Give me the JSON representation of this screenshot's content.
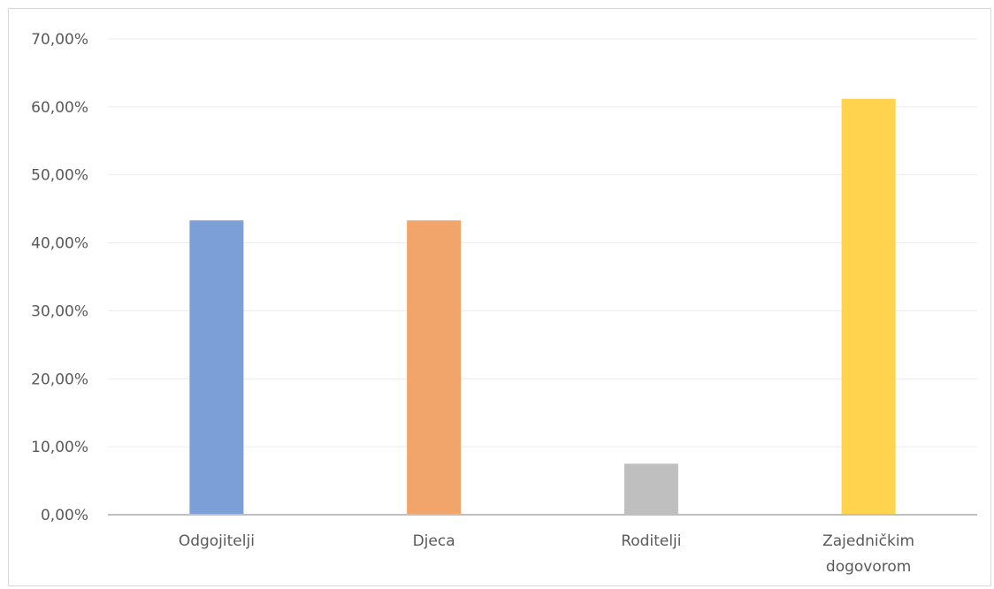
{
  "chart_data": {
    "type": "bar",
    "title": "",
    "xlabel": "",
    "ylabel": "",
    "categories": [
      [
        "Odgojitelji"
      ],
      [
        "Djeca"
      ],
      [
        "Roditelji"
      ],
      [
        "Zajedničkim",
        "dogovorom"
      ]
    ],
    "values": [
      43.3,
      43.3,
      7.5,
      61.2
    ],
    "colors": [
      "#7c9fd8",
      "#f2a56b",
      "#bfbfbf",
      "#ffd34d"
    ],
    "ylim": [
      0,
      70
    ],
    "yticks": [
      0,
      10,
      20,
      30,
      40,
      50,
      60,
      70
    ],
    "ytick_labels": [
      "0,00%",
      "10,00%",
      "20,00%",
      "30,00%",
      "40,00%",
      "50,00%",
      "60,00%",
      "70,00%"
    ],
    "grid": true,
    "legend": "none"
  }
}
